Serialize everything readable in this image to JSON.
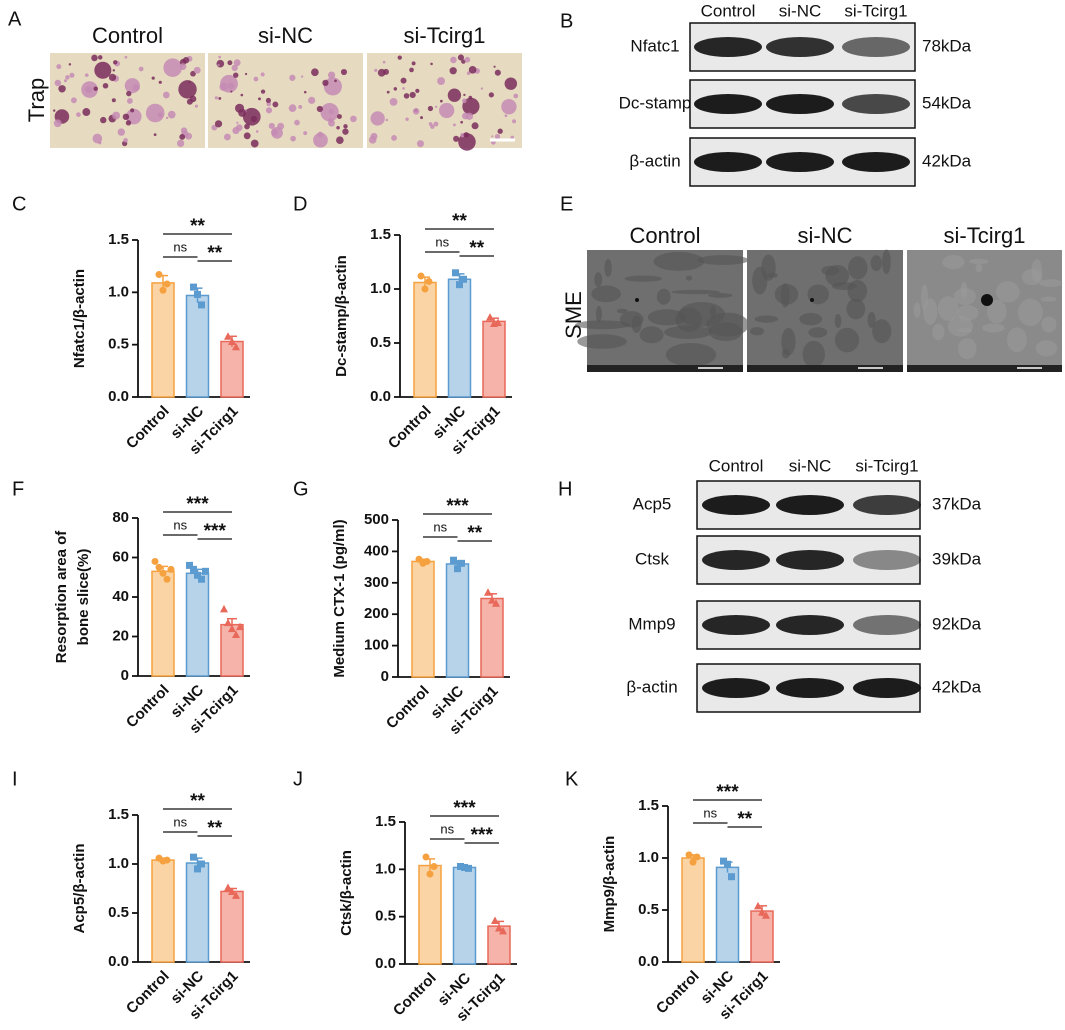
{
  "panel_a": {
    "letter": "A",
    "columns": [
      "Control",
      "si-NC",
      "si-Tcirg1"
    ],
    "row_label": "Trap"
  },
  "panel_b": {
    "letter": "B",
    "columns": [
      "Control",
      "si-NC",
      "si-Tcirg1"
    ],
    "rows": [
      {
        "protein": "Nfatc1",
        "size": "78kDa"
      },
      {
        "protein": "Dc-stamp",
        "size": "54kDa"
      },
      {
        "protein": "β-actin",
        "size": "42kDa"
      }
    ]
  },
  "panel_e": {
    "letter": "E",
    "columns": [
      "Control",
      "si-NC",
      "si-Tcirg1"
    ],
    "row_label": "SME"
  },
  "panel_h": {
    "letter": "H",
    "columns": [
      "Control",
      "si-NC",
      "si-Tcirg1"
    ],
    "rows": [
      {
        "protein": "Acp5",
        "size": "37kDa"
      },
      {
        "protein": "Ctsk",
        "size": "39kDa"
      },
      {
        "protein": "Mmp9",
        "size": "92kDa"
      },
      {
        "protein": "β-actin",
        "size": "42kDa"
      }
    ]
  },
  "chart_data": [
    {
      "letter": "C",
      "type": "bar",
      "ylabel": "Nfatc1/β-actin",
      "categories": [
        "Control",
        "si-NC",
        "si-Tcirg1"
      ],
      "values": [
        1.09,
        0.97,
        0.53
      ],
      "errors": [
        0.07,
        0.07,
        0.05
      ],
      "points": [
        [
          1.17,
          1.02,
          1.08
        ],
        [
          1.05,
          0.98,
          0.88
        ],
        [
          0.58,
          0.53,
          0.48
        ]
      ],
      "colors": [
        "#f5a13f",
        "#5b9bd0",
        "#e8685a"
      ],
      "fill_colors": [
        "#fbd4a6",
        "#b6d3ea",
        "#f5b3aa"
      ],
      "markers": [
        "circle",
        "square",
        "triangle"
      ],
      "ylim": [
        0,
        1.5
      ],
      "yticks": [
        {
          "value": 0,
          "label": "0.0"
        },
        {
          "value": 0.5,
          "label": "0.5"
        },
        {
          "value": 1,
          "label": "1.0"
        },
        {
          "value": 1.5,
          "label": "1.5"
        }
      ],
      "significance": [
        {
          "pair": [
            0,
            2
          ],
          "label": "**"
        },
        {
          "pair": [
            0,
            1
          ],
          "label": "ns"
        },
        {
          "pair": [
            1,
            2
          ],
          "label": "**"
        }
      ]
    },
    {
      "letter": "D",
      "type": "bar",
      "ylabel": "Dc-stamp/β-actin",
      "categories": [
        "Control",
        "si-NC",
        "si-Tcirg1"
      ],
      "values": [
        1.06,
        1.09,
        0.7
      ],
      "errors": [
        0.05,
        0.05,
        0.03
      ],
      "points": [
        [
          1.12,
          1.0,
          1.07
        ],
        [
          1.15,
          1.04,
          1.09
        ],
        [
          0.74,
          0.68,
          0.69
        ]
      ],
      "colors": [
        "#f5a13f",
        "#5b9bd0",
        "#e8685a"
      ],
      "fill_colors": [
        "#fbd4a6",
        "#b6d3ea",
        "#f5b3aa"
      ],
      "markers": [
        "circle",
        "square",
        "triangle"
      ],
      "ylim": [
        0,
        1.5
      ],
      "yticks": [
        {
          "value": 0,
          "label": "0.0"
        },
        {
          "value": 0.5,
          "label": "0.5"
        },
        {
          "value": 1,
          "label": "1.0"
        },
        {
          "value": 1.5,
          "label": "1.5"
        }
      ],
      "significance": [
        {
          "pair": [
            0,
            2
          ],
          "label": "**"
        },
        {
          "pair": [
            0,
            1
          ],
          "label": "ns"
        },
        {
          "pair": [
            1,
            2
          ],
          "label": "**"
        }
      ]
    },
    {
      "letter": "F",
      "type": "bar",
      "ylabel": [
        "Resorption area of",
        "bone slice(%)"
      ],
      "categories": [
        "Control",
        "si-NC",
        "si-Tcirg1"
      ],
      "values": [
        53,
        52,
        26
      ],
      "errors": [
        2.5,
        2,
        3
      ],
      "points": [
        [
          58,
          55,
          52,
          49,
          54
        ],
        [
          56,
          54,
          51,
          49,
          53
        ],
        [
          34,
          27,
          24,
          21,
          25
        ]
      ],
      "colors": [
        "#f5a13f",
        "#5b9bd0",
        "#e8685a"
      ],
      "fill_colors": [
        "#fbd4a6",
        "#b6d3ea",
        "#f5b3aa"
      ],
      "markers": [
        "circle",
        "square",
        "triangle"
      ],
      "ylim": [
        0,
        80
      ],
      "yticks": [
        0,
        20,
        40,
        60,
        80
      ],
      "significance": [
        {
          "pair": [
            0,
            2
          ],
          "label": "***"
        },
        {
          "pair": [
            0,
            1
          ],
          "label": "ns"
        },
        {
          "pair": [
            1,
            2
          ],
          "label": "***"
        }
      ]
    },
    {
      "letter": "G",
      "type": "bar",
      "ylabel": "Medium CTX-1 (pg/ml)",
      "categories": [
        "Control",
        "si-NC",
        "si-Tcirg1"
      ],
      "values": [
        368,
        360,
        250
      ],
      "errors": [
        7,
        10,
        15
      ],
      "points": [
        [
          375,
          362,
          368
        ],
        [
          372,
          345,
          362
        ],
        [
          270,
          245,
          235
        ]
      ],
      "colors": [
        "#f5a13f",
        "#5b9bd0",
        "#e8685a"
      ],
      "fill_colors": [
        "#fbd4a6",
        "#b6d3ea",
        "#f5b3aa"
      ],
      "markers": [
        "circle",
        "square",
        "triangle"
      ],
      "ylim": [
        0,
        500
      ],
      "yticks": [
        0,
        100,
        200,
        300,
        400,
        500
      ],
      "significance": [
        {
          "pair": [
            0,
            2
          ],
          "label": "***"
        },
        {
          "pair": [
            0,
            1
          ],
          "label": "ns"
        },
        {
          "pair": [
            1,
            2
          ],
          "label": "**"
        }
      ]
    },
    {
      "letter": "I",
      "type": "bar",
      "ylabel": "Acp5/β-actin",
      "categories": [
        "Control",
        "si-NC",
        "si-Tcirg1"
      ],
      "values": [
        1.04,
        1.01,
        0.72
      ],
      "errors": [
        0.02,
        0.05,
        0.03
      ],
      "points": [
        [
          1.06,
          1.03,
          1.04
        ],
        [
          1.07,
          0.95,
          1.0
        ],
        [
          0.76,
          0.72,
          0.68
        ]
      ],
      "colors": [
        "#f5a13f",
        "#5b9bd0",
        "#e8685a"
      ],
      "fill_colors": [
        "#fbd4a6",
        "#b6d3ea",
        "#f5b3aa"
      ],
      "markers": [
        "circle",
        "square",
        "triangle"
      ],
      "ylim": [
        0,
        1.5
      ],
      "yticks": [
        {
          "value": 0,
          "label": "0.0"
        },
        {
          "value": 0.5,
          "label": "0.5"
        },
        {
          "value": 1,
          "label": "1.0"
        },
        {
          "value": 1.5,
          "label": "1.5"
        }
      ],
      "significance": [
        {
          "pair": [
            0,
            2
          ],
          "label": "**"
        },
        {
          "pair": [
            0,
            1
          ],
          "label": "ns"
        },
        {
          "pair": [
            1,
            2
          ],
          "label": "**"
        }
      ]
    },
    {
      "letter": "J",
      "type": "bar",
      "ylabel": "Ctsk/β-actin",
      "categories": [
        "Control",
        "si-NC",
        "si-Tcirg1"
      ],
      "values": [
        1.04,
        1.02,
        0.4
      ],
      "errors": [
        0.07,
        0.01,
        0.05
      ],
      "points": [
        [
          1.13,
          0.95,
          1.03
        ],
        [
          1.03,
          1.02,
          1.01
        ],
        [
          0.46,
          0.38,
          0.35
        ]
      ],
      "colors": [
        "#f5a13f",
        "#5b9bd0",
        "#e8685a"
      ],
      "fill_colors": [
        "#fbd4a6",
        "#b6d3ea",
        "#f5b3aa"
      ],
      "markers": [
        "circle",
        "square",
        "triangle"
      ],
      "ylim": [
        0,
        1.5
      ],
      "yticks": [
        {
          "value": 0,
          "label": "0.0"
        },
        {
          "value": 0.5,
          "label": "0.5"
        },
        {
          "value": 1,
          "label": "1.0"
        },
        {
          "value": 1.5,
          "label": "1.5"
        }
      ],
      "significance": [
        {
          "pair": [
            0,
            2
          ],
          "label": "***"
        },
        {
          "pair": [
            0,
            1
          ],
          "label": "ns"
        },
        {
          "pair": [
            1,
            2
          ],
          "label": "***"
        }
      ]
    },
    {
      "letter": "K",
      "type": "bar",
      "ylabel": "Mmp9/β-actin",
      "categories": [
        "Control",
        "si-NC",
        "si-Tcirg1"
      ],
      "values": [
        1.0,
        0.91,
        0.49
      ],
      "errors": [
        0.03,
        0.05,
        0.05
      ],
      "points": [
        [
          1.03,
          0.96,
          1.01
        ],
        [
          0.97,
          0.94,
          0.82
        ],
        [
          0.54,
          0.48,
          0.45
        ]
      ],
      "colors": [
        "#f5a13f",
        "#5b9bd0",
        "#e8685a"
      ],
      "fill_colors": [
        "#fbd4a6",
        "#b6d3ea",
        "#f5b3aa"
      ],
      "markers": [
        "circle",
        "square",
        "triangle"
      ],
      "ylim": [
        0,
        1.5
      ],
      "yticks": [
        {
          "value": 0,
          "label": "0.0"
        },
        {
          "value": 0.5,
          "label": "0.5"
        },
        {
          "value": 1,
          "label": "1.0"
        },
        {
          "value": 1.5,
          "label": "1.5"
        }
      ],
      "significance": [
        {
          "pair": [
            0,
            2
          ],
          "label": "***"
        },
        {
          "pair": [
            0,
            1
          ],
          "label": "ns"
        },
        {
          "pair": [
            1,
            2
          ],
          "label": "**"
        }
      ]
    }
  ]
}
